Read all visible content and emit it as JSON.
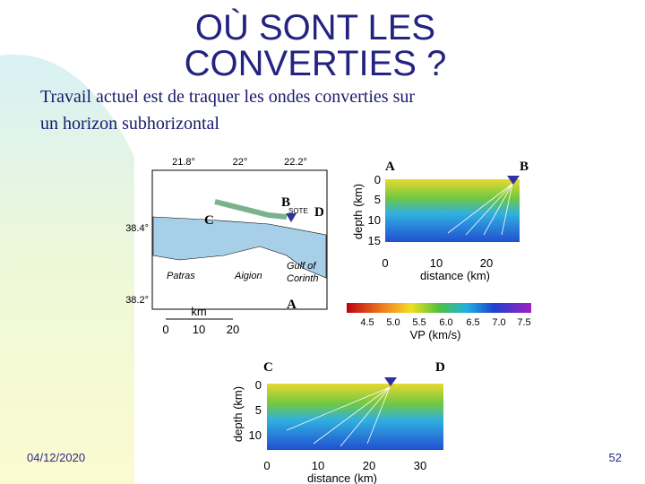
{
  "title": {
    "lines": [
      "OÙ SONT LES",
      "CONVERTIES ?"
    ]
  },
  "body": {
    "lines": [
      "Travail actuel est de traquer les ondes converties sur",
      "un horizon subhorizontal"
    ]
  },
  "map": {
    "lon_labels": [
      "21.8°",
      "22°",
      "22.2°"
    ],
    "lat_labels": [
      "38.4°",
      "38.2°"
    ],
    "points": [
      "A",
      "B",
      "C",
      "D"
    ],
    "station": "SOTE",
    "places": [
      "Patras",
      "Aigion"
    ],
    "gulf": [
      "Gulf of",
      "Corinth"
    ],
    "scale_unit": "km",
    "scale_ticks": [
      "0",
      "10",
      "20"
    ]
  },
  "section_ab": {
    "ends": [
      "A",
      "B"
    ],
    "y_label": "depth (km)",
    "x_label": "distance (km)",
    "y_ticks": [
      "0",
      "5",
      "10",
      "15"
    ],
    "x_ticks": [
      "0",
      "10",
      "20"
    ]
  },
  "colorbar": {
    "ticks": [
      "4.5",
      "5.0",
      "5.5",
      "6.0",
      "6.5",
      "7.0",
      "7.5"
    ],
    "label": "VP (km/s)"
  },
  "section_cd": {
    "ends": [
      "C",
      "D"
    ],
    "y_label": "depth (km)",
    "x_label": "distance (km)",
    "y_ticks": [
      "0",
      "5",
      "10"
    ],
    "x_ticks": [
      "0",
      "10",
      "20",
      "30"
    ]
  },
  "footer": {
    "date": "04/12/2020",
    "page": "52"
  }
}
